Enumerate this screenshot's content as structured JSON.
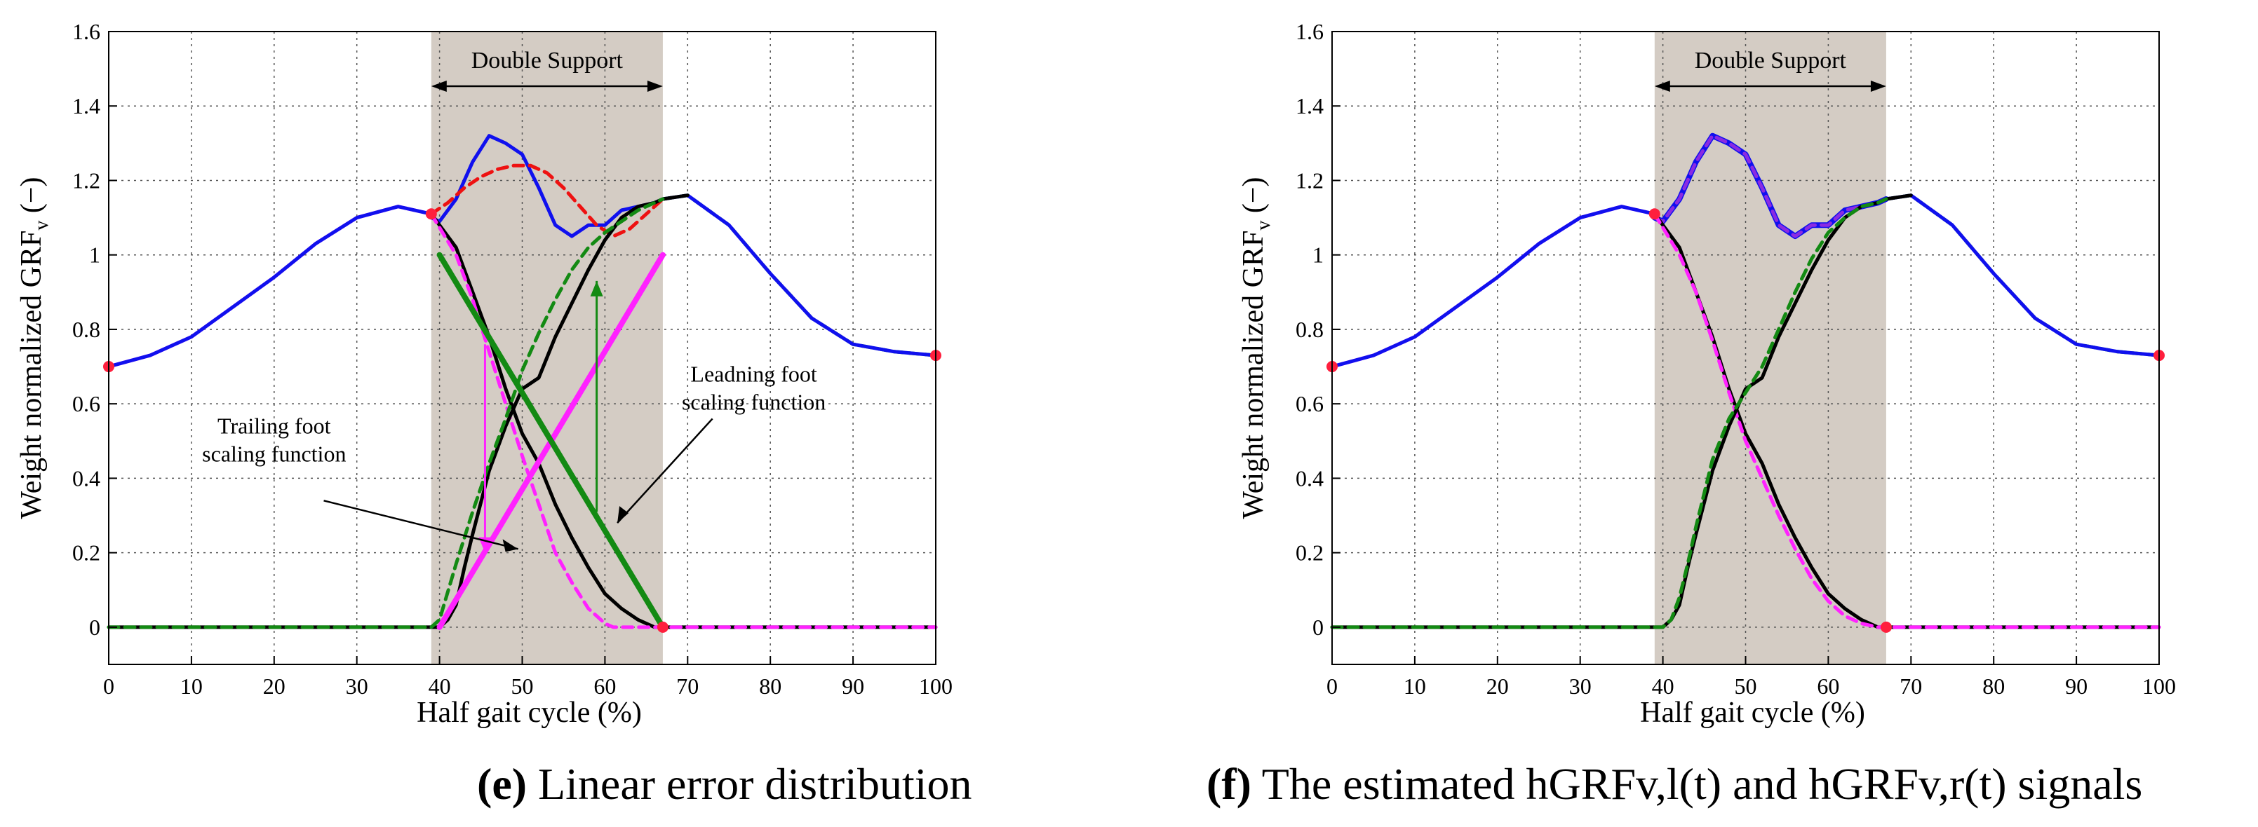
{
  "chart_data": [
    {
      "id": "e",
      "type": "line",
      "caption_letter": "(e)",
      "caption_text": " Linear error distribution",
      "xlabel": "Half gait cycle (%)",
      "ylabel": "Weight normalized GRF",
      "ylabel_sub": "v",
      "ylabel_unit": " (−)",
      "xlim": [
        0,
        100
      ],
      "ylim": [
        -0.1,
        1.6
      ],
      "xticks": [
        0,
        10,
        20,
        30,
        40,
        50,
        60,
        70,
        80,
        90,
        100
      ],
      "yticks": [
        0,
        0.2,
        0.4,
        0.6,
        0.8,
        1,
        1.2,
        1.4,
        1.6
      ],
      "ytick_labels": [
        "0",
        "0.2",
        "0.4",
        "0.6",
        "0.8",
        "1",
        "1.2",
        "1.4",
        "1.6"
      ],
      "grid": true,
      "double_support": {
        "label": "Double Support",
        "x_start": 39,
        "x_end": 67
      },
      "series": [
        {
          "name": "total-grf-measured",
          "color": "#1010ee",
          "style": "solid",
          "x": [
            39,
            40,
            42,
            44,
            46,
            48,
            50,
            52,
            54,
            56,
            58,
            60,
            62,
            64,
            66,
            67
          ],
          "y": [
            1.1,
            1.09,
            1.15,
            1.25,
            1.32,
            1.3,
            1.27,
            1.18,
            1.08,
            1.05,
            1.08,
            1.08,
            1.12,
            1.13,
            1.14,
            1.15
          ]
        },
        {
          "name": "total-grf-interpolated",
          "color": "#ee1111",
          "style": "dashed",
          "x": [
            39,
            41,
            43,
            45,
            47,
            49,
            51,
            53,
            55,
            57,
            59,
            61,
            63,
            65,
            67
          ],
          "y": [
            1.11,
            1.14,
            1.18,
            1.21,
            1.23,
            1.24,
            1.24,
            1.22,
            1.18,
            1.13,
            1.08,
            1.05,
            1.07,
            1.11,
            1.15
          ]
        },
        {
          "name": "grf-envelope-magenta",
          "color": "#ff22ff",
          "style": "solid",
          "x": [
            0,
            5,
            10,
            15,
            20,
            25,
            30,
            35,
            39
          ],
          "y": [
            0.7,
            0.73,
            0.78,
            0.86,
            0.94,
            1.03,
            1.1,
            1.13,
            1.11
          ]
        },
        {
          "name": "grf-envelope-blue",
          "color": "#1010ee",
          "style": "solid",
          "x": [
            0,
            5,
            10,
            15,
            20,
            25,
            30,
            35,
            39
          ],
          "y": [
            0.7,
            0.73,
            0.78,
            0.86,
            0.94,
            1.03,
            1.1,
            1.13,
            1.11
          ]
        },
        {
          "name": "grf-tail-green",
          "color": "#138a13",
          "style": "dashed",
          "x": [
            67,
            70,
            75,
            80,
            85,
            90,
            95,
            100
          ],
          "y": [
            1.15,
            1.16,
            1.08,
            0.95,
            0.83,
            0.76,
            0.74,
            0.73
          ]
        },
        {
          "name": "grf-tail-blue",
          "color": "#1010ee",
          "style": "solid",
          "x": [
            67,
            70,
            75,
            80,
            85,
            90,
            95,
            100
          ],
          "y": [
            1.15,
            1.16,
            1.08,
            0.95,
            0.83,
            0.76,
            0.74,
            0.73
          ]
        },
        {
          "name": "trailing-leg-black",
          "color": "#000000",
          "style": "solid",
          "x": [
            39,
            42,
            44,
            46,
            48,
            50,
            52,
            54,
            56,
            58,
            60,
            62,
            64,
            66,
            67,
            70,
            80,
            90,
            100
          ],
          "y": [
            1.11,
            1.02,
            0.9,
            0.78,
            0.64,
            0.52,
            0.44,
            0.33,
            0.24,
            0.16,
            0.09,
            0.05,
            0.02,
            0.0,
            0.0,
            0.0,
            0.0,
            0.0,
            0.0
          ]
        },
        {
          "name": "trailing-leg-scaled",
          "color": "#ff22ff",
          "style": "dashed",
          "x": [
            39,
            42,
            44,
            46,
            48,
            50,
            52,
            54,
            56,
            58,
            59,
            60,
            61,
            62,
            67,
            80,
            100
          ],
          "y": [
            1.11,
            1.0,
            0.88,
            0.74,
            0.6,
            0.46,
            0.33,
            0.2,
            0.12,
            0.05,
            0.03,
            0.01,
            0.0,
            0.0,
            0.0,
            0.0,
            0.0
          ]
        },
        {
          "name": "leading-leg-black",
          "color": "#000000",
          "style": "solid",
          "x": [
            0,
            20,
            39,
            40,
            41,
            42,
            43,
            44,
            46,
            48,
            50,
            52,
            54,
            56,
            58,
            60,
            62,
            64,
            66,
            67,
            70
          ],
          "y": [
            0,
            0,
            0,
            0.0,
            0.02,
            0.06,
            0.16,
            0.25,
            0.42,
            0.54,
            0.64,
            0.67,
            0.78,
            0.87,
            0.96,
            1.04,
            1.1,
            1.13,
            1.14,
            1.15,
            1.16
          ]
        },
        {
          "name": "leading-leg-scaled",
          "color": "#138a13",
          "style": "dashed",
          "x": [
            0,
            20,
            39,
            40,
            42,
            44,
            46,
            48,
            50,
            52,
            54,
            56,
            58,
            60,
            62,
            64,
            66,
            67
          ],
          "y": [
            0,
            0,
            0,
            0.02,
            0.17,
            0.31,
            0.44,
            0.56,
            0.69,
            0.79,
            0.88,
            0.96,
            1.02,
            1.06,
            1.09,
            1.12,
            1.14,
            1.15
          ]
        },
        {
          "name": "trailing-scaling-function",
          "color": "#ff22ff",
          "style": "thick",
          "x": [
            40,
            67
          ],
          "y": [
            0,
            1
          ]
        },
        {
          "name": "leading-scaling-function",
          "color": "#138a13",
          "style": "thick",
          "x": [
            40,
            67
          ],
          "y": [
            1,
            0
          ]
        }
      ],
      "markers": [
        {
          "x": 0,
          "y": 0.7
        },
        {
          "x": 39,
          "y": 1.11
        },
        {
          "x": 67,
          "y": 0.0
        },
        {
          "x": 100,
          "y": 0.73
        }
      ],
      "arrows": [
        {
          "name": "magenta-correction-arrow",
          "color": "#ff22ff",
          "x": 45.5,
          "y0": 0.76,
          "y1": 0.2
        },
        {
          "name": "green-correction-arrow",
          "color": "#138a13",
          "x": 59,
          "y0": 0.31,
          "y1": 0.93
        }
      ],
      "annotations": [
        {
          "text": "Trailing foot",
          "text2": "scaling function",
          "x": 20,
          "y": 0.52
        },
        {
          "text": "Leadning foot",
          "text2": "scaling function",
          "x": 78,
          "y": 0.66
        }
      ]
    },
    {
      "id": "f",
      "type": "line",
      "caption_letter": "(f)",
      "caption_text": " The estimated hGRFv,l(t) and hGRFv,r(t) signals",
      "xlabel": "Half gait cycle (%)",
      "ylabel": "Weight normalized GRF",
      "ylabel_sub": "v",
      "ylabel_unit": " (−)",
      "xlim": [
        0,
        100
      ],
      "ylim": [
        -0.1,
        1.6
      ],
      "xticks": [
        0,
        10,
        20,
        30,
        40,
        50,
        60,
        70,
        80,
        90,
        100
      ],
      "yticks": [
        0,
        0.2,
        0.4,
        0.6,
        0.8,
        1,
        1.2,
        1.4,
        1.6
      ],
      "ytick_labels": [
        "0",
        "0.2",
        "0.4",
        "0.6",
        "0.8",
        "1",
        "1.2",
        "1.4",
        "1.6"
      ],
      "grid": true,
      "double_support": {
        "label": "Double Support",
        "x_start": 39,
        "x_end": 67
      },
      "series": [
        {
          "name": "total-grf-blue",
          "color": "#1010ee",
          "style": "thick",
          "x": [
            39,
            40,
            42,
            44,
            46,
            48,
            50,
            52,
            54,
            56,
            58,
            60,
            62,
            64,
            66,
            67
          ],
          "y": [
            1.1,
            1.09,
            1.15,
            1.25,
            1.32,
            1.3,
            1.27,
            1.18,
            1.08,
            1.05,
            1.08,
            1.08,
            1.12,
            1.13,
            1.14,
            1.15
          ]
        },
        {
          "name": "total-grf-overlay",
          "color": "#8a2be2",
          "style": "dashed",
          "x": [
            39,
            40,
            42,
            44,
            46,
            48,
            50,
            52,
            54,
            56,
            58,
            60,
            62,
            64,
            66,
            67
          ],
          "y": [
            1.1,
            1.09,
            1.15,
            1.25,
            1.32,
            1.3,
            1.27,
            1.18,
            1.08,
            1.05,
            1.08,
            1.08,
            1.12,
            1.13,
            1.14,
            1.15
          ]
        },
        {
          "name": "grf-envelope-magenta",
          "color": "#ff22ff",
          "style": "solid",
          "x": [
            0,
            5,
            10,
            15,
            20,
            25,
            30,
            35,
            39
          ],
          "y": [
            0.7,
            0.73,
            0.78,
            0.86,
            0.94,
            1.03,
            1.1,
            1.13,
            1.11
          ]
        },
        {
          "name": "grf-envelope-blue",
          "color": "#1010ee",
          "style": "solid",
          "x": [
            0,
            5,
            10,
            15,
            20,
            25,
            30,
            35,
            39
          ],
          "y": [
            0.7,
            0.73,
            0.78,
            0.86,
            0.94,
            1.03,
            1.1,
            1.13,
            1.11
          ]
        },
        {
          "name": "grf-tail-green",
          "color": "#138a13",
          "style": "dashed",
          "x": [
            67,
            70,
            75,
            80,
            85,
            90,
            95,
            100
          ],
          "y": [
            1.15,
            1.16,
            1.08,
            0.95,
            0.83,
            0.76,
            0.74,
            0.73
          ]
        },
        {
          "name": "grf-tail-blue",
          "color": "#1010ee",
          "style": "solid",
          "x": [
            67,
            70,
            75,
            80,
            85,
            90,
            95,
            100
          ],
          "y": [
            1.15,
            1.16,
            1.08,
            0.95,
            0.83,
            0.76,
            0.74,
            0.73
          ]
        },
        {
          "name": "left-leg-black",
          "color": "#000000",
          "style": "solid",
          "x": [
            39,
            42,
            44,
            46,
            48,
            50,
            52,
            54,
            56,
            58,
            60,
            62,
            64,
            66,
            67,
            70,
            80,
            90,
            100
          ],
          "y": [
            1.11,
            1.02,
            0.9,
            0.78,
            0.64,
            0.52,
            0.44,
            0.33,
            0.24,
            0.16,
            0.09,
            0.05,
            0.02,
            0.0,
            0.0,
            0.0,
            0.0,
            0.0,
            0.0
          ]
        },
        {
          "name": "left-leg-estimated",
          "color": "#ff22ff",
          "style": "dashed",
          "x": [
            39,
            42,
            44,
            46,
            48,
            50,
            52,
            54,
            56,
            58,
            60,
            62,
            64,
            66,
            67,
            80,
            100
          ],
          "y": [
            1.11,
            1.0,
            0.9,
            0.77,
            0.63,
            0.5,
            0.4,
            0.3,
            0.21,
            0.13,
            0.07,
            0.03,
            0.01,
            0.0,
            0.0,
            0.0,
            0.0
          ]
        },
        {
          "name": "right-leg-black",
          "color": "#000000",
          "style": "solid",
          "x": [
            0,
            20,
            39,
            40,
            41,
            42,
            43,
            44,
            46,
            48,
            50,
            52,
            54,
            56,
            58,
            60,
            62,
            64,
            66,
            67,
            70
          ],
          "y": [
            0,
            0,
            0,
            0.0,
            0.02,
            0.06,
            0.16,
            0.25,
            0.42,
            0.54,
            0.64,
            0.67,
            0.78,
            0.87,
            0.96,
            1.04,
            1.1,
            1.13,
            1.14,
            1.15,
            1.16
          ]
        },
        {
          "name": "right-leg-estimated",
          "color": "#138a13",
          "style": "dashed",
          "x": [
            0,
            20,
            39,
            40,
            41,
            42,
            43,
            44,
            46,
            48,
            50,
            52,
            54,
            56,
            58,
            60,
            62,
            64,
            66,
            67
          ],
          "y": [
            0,
            0,
            0,
            0.0,
            0.02,
            0.08,
            0.17,
            0.27,
            0.45,
            0.56,
            0.63,
            0.7,
            0.8,
            0.9,
            0.99,
            1.06,
            1.1,
            1.13,
            1.14,
            1.15
          ]
        }
      ],
      "markers": [
        {
          "x": 0,
          "y": 0.7
        },
        {
          "x": 39,
          "y": 1.11
        },
        {
          "x": 67,
          "y": 0.0
        },
        {
          "x": 100,
          "y": 0.73
        }
      ],
      "arrows": [],
      "annotations": []
    }
  ]
}
